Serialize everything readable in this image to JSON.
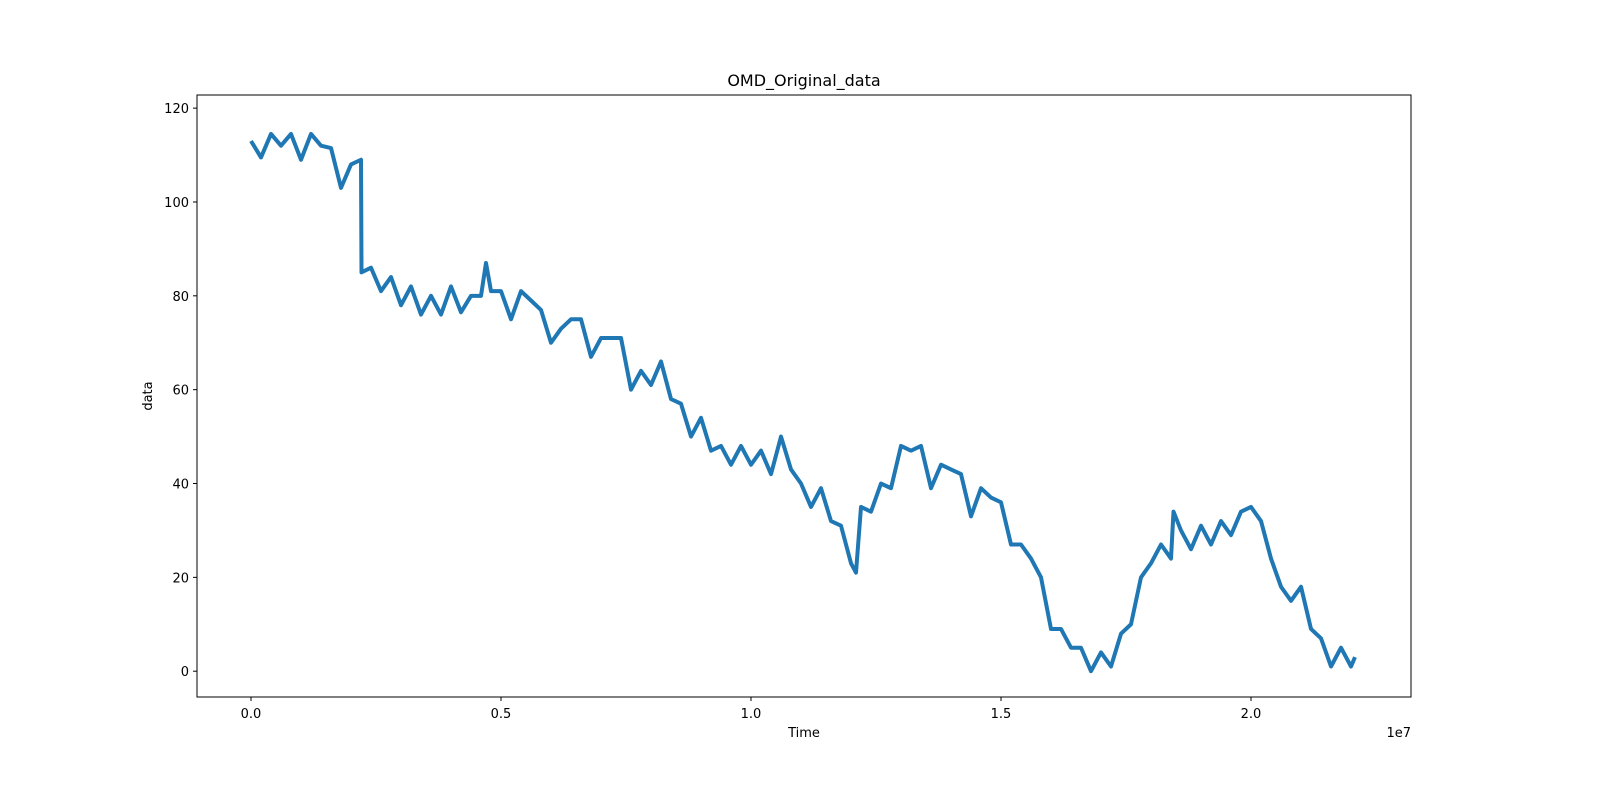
{
  "chart_data": {
    "type": "line",
    "title": "OMD_Original_data",
    "x_label": "Time",
    "y_label": "data",
    "x_offset_label": "1e7",
    "xlim": [
      -1080000,
      23200000
    ],
    "ylim": [
      -5.5,
      122.8
    ],
    "xticks": [
      {
        "value": 0,
        "label": "0.0"
      },
      {
        "value": 5000000,
        "label": "0.5"
      },
      {
        "value": 10000000,
        "label": "1.0"
      },
      {
        "value": 15000000,
        "label": "1.5"
      },
      {
        "value": 20000000,
        "label": "2.0"
      }
    ],
    "yticks": [
      0,
      20,
      40,
      60,
      80,
      100,
      120
    ],
    "grid": false,
    "series": [
      {
        "name": "data",
        "color": "#1f77b4",
        "x": [
          0,
          200000,
          400000,
          600000,
          800000,
          1000000,
          1200000,
          1400000,
          1600000,
          1800000,
          2000000,
          2200000,
          2210000,
          2400000,
          2600000,
          2800000,
          3000000,
          3200000,
          3400000,
          3600000,
          3800000,
          4000000,
          4200000,
          4400000,
          4600000,
          4700000,
          4800000,
          5000000,
          5200000,
          5400000,
          5600000,
          5800000,
          6000000,
          6200000,
          6400000,
          6600000,
          6800000,
          7000000,
          7200000,
          7400000,
          7600000,
          7800000,
          8000000,
          8200000,
          8400000,
          8600000,
          8800000,
          9000000,
          9200000,
          9400000,
          9600000,
          9800000,
          10000000,
          10200000,
          10400000,
          10600000,
          10800000,
          11000000,
          11200000,
          11400000,
          11600000,
          11800000,
          12000000,
          12100000,
          12200000,
          12400000,
          12600000,
          12800000,
          13000000,
          13200000,
          13400000,
          13600000,
          13800000,
          14000000,
          14200000,
          14400000,
          14600000,
          14800000,
          15000000,
          15200000,
          15400000,
          15600000,
          15800000,
          16000000,
          16200000,
          16400000,
          16600000,
          16800000,
          17000000,
          17200000,
          17400000,
          17600000,
          17800000,
          18000000,
          18200000,
          18400000,
          18450000,
          18600000,
          18800000,
          19000000,
          19200000,
          19400000,
          19600000,
          19800000,
          20000000,
          20200000,
          20400000,
          20600000,
          20800000,
          21000000,
          21200000,
          21400000,
          21600000,
          21800000,
          22000000,
          22080000
        ],
        "values": [
          113,
          109.5,
          114.5,
          112,
          114.5,
          109,
          114.5,
          112,
          111.5,
          103,
          108,
          109,
          85,
          86,
          81,
          84,
          78,
          82,
          76,
          80,
          76,
          82,
          76.5,
          80,
          80,
          87,
          81,
          81,
          75,
          81,
          79,
          77,
          70,
          73,
          75,
          75,
          67,
          71,
          71,
          71,
          60,
          64,
          61,
          66,
          58,
          57,
          50,
          54,
          47,
          48,
          44,
          48,
          44,
          47,
          42,
          50,
          43,
          40,
          35,
          39,
          32,
          31,
          23,
          21,
          35,
          34,
          40,
          39,
          48,
          47,
          48,
          39,
          44,
          43,
          42,
          33,
          39,
          37,
          36,
          27,
          27,
          24,
          20,
          9,
          9,
          5,
          5,
          0,
          4,
          1,
          8,
          10,
          20,
          23,
          27,
          24,
          34,
          30,
          26,
          31,
          27,
          32,
          29,
          34,
          35,
          32,
          24,
          18,
          15,
          18,
          9,
          7,
          1,
          5,
          1,
          3
        ]
      }
    ]
  }
}
